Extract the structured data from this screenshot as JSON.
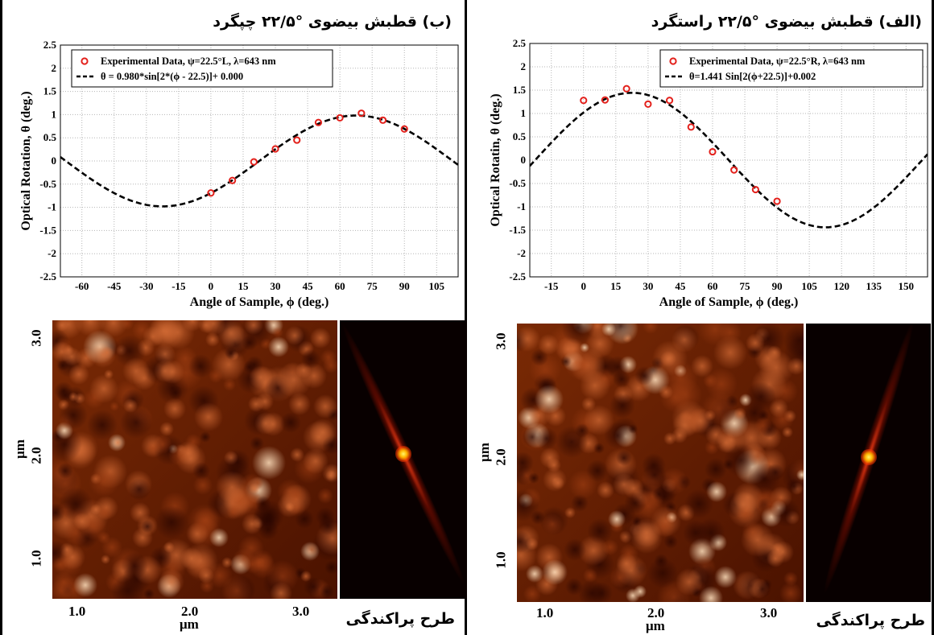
{
  "panels": {
    "left": {
      "title": "(ب)   قطبش بیضوی °۲۲/۵ چپگرد",
      "afm_y_unit": "μm",
      "afm_x_unit": "μm",
      "afm_y_ticks": [
        "3.0",
        "2.0",
        "1.0"
      ],
      "afm_x_ticks": [
        "1.0",
        "2.0",
        "3.0"
      ],
      "caption": "طرح پراکندگی"
    },
    "right": {
      "title": "(الف)   قطبش بیضوی °۲۲/۵ راستگرد",
      "afm_y_unit": "μm",
      "afm_x_unit": "μm",
      "afm_y_ticks": [
        "3.0",
        "2.0",
        "1.0"
      ],
      "afm_x_ticks": [
        "1.0",
        "2.0",
        "3.0"
      ],
      "caption": "طرح پراکندگی"
    }
  },
  "colors": {
    "data_marker": "#e3211c",
    "fit_line": "#000000",
    "grid": "#b5b5b5",
    "afm_base": "#6a1f02",
    "fft_center": "#fff66a"
  },
  "chart_data": [
    {
      "type": "scatter",
      "xlabel": "Angle of Sample, ϕ  (deg.)",
      "ylabel": "Optical Rotation, θ (deg.)",
      "xlim": [
        -70,
        115
      ],
      "ylim": [
        -2.5,
        2.5
      ],
      "xticks": [
        -60,
        -45,
        -30,
        -15,
        0,
        15,
        30,
        45,
        60,
        75,
        90,
        105
      ],
      "yticks": [
        -2.5,
        -2,
        -1.5,
        -1,
        -0.5,
        0,
        0.5,
        1,
        1.5,
        2,
        2.5
      ],
      "grid": true,
      "legend_position": "top",
      "series": [
        {
          "name": "Experimental Data, ψ=22.5°L, λ=643 nm",
          "kind": "points",
          "x": [
            0,
            10,
            20,
            30,
            40,
            50,
            60,
            70,
            80,
            90
          ],
          "y": [
            -0.69,
            -0.42,
            -0.02,
            0.26,
            0.45,
            0.83,
            0.93,
            1.03,
            0.88,
            0.69
          ]
        },
        {
          "name": "θ = 0.980*sin[2*(ϕ - 22.5)]+ 0.000",
          "kind": "dashed-line",
          "formula": {
            "amp": 0.98,
            "sign": -1,
            "shift": 22.5,
            "offset": 0.0
          }
        }
      ]
    },
    {
      "type": "scatter",
      "xlabel": "Angle of Sample, ϕ (deg.)",
      "ylabel": "Optical Rotatin, θ (deg.)",
      "xlim": [
        -25,
        160
      ],
      "ylim": [
        -2.5,
        2.5
      ],
      "xticks": [
        -15,
        0,
        15,
        30,
        45,
        60,
        75,
        90,
        105,
        120,
        135,
        150
      ],
      "yticks": [
        -2.5,
        -2,
        -1.5,
        -1,
        -0.5,
        0,
        0.5,
        1,
        1.5,
        2,
        2.5
      ],
      "grid": true,
      "legend_position": "top-right",
      "series": [
        {
          "name": "Experimental Data, ψ=22.5°R, λ=643 nm",
          "kind": "points",
          "x": [
            0,
            10,
            20,
            30,
            40,
            50,
            60,
            70,
            80,
            90
          ],
          "y": [
            1.28,
            1.29,
            1.53,
            1.2,
            1.28,
            0.71,
            0.18,
            -0.21,
            -0.63,
            -0.88
          ]
        },
        {
          "name": "θ=1.441 Sin[2(ϕ+22.5)]+0.002",
          "kind": "dashed-line",
          "formula": {
            "amp": 1.441,
            "sign": 1,
            "shift": 22.5,
            "offset": 0.002
          }
        }
      ]
    }
  ]
}
